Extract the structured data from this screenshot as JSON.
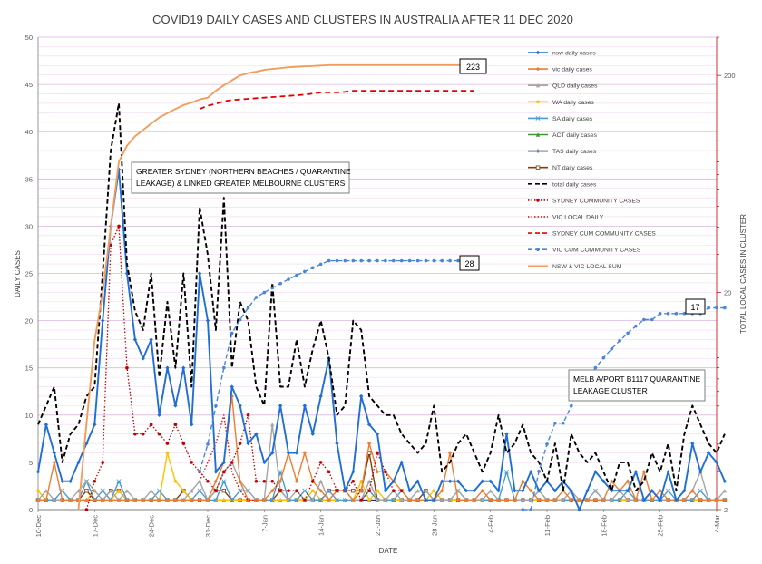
{
  "chart_data": {
    "type": "line",
    "title": "COVID19 DAILY CASES AND CLUSTERS IN AUSTRALIA AFTER 11 DEC 2020",
    "xlabel": "DATE",
    "ylabel": "DAILY CASES",
    "y2label": "TOTAL LOCAL CASES IN CLUSTER",
    "x_ticks": [
      "10-Dec",
      "17-Dec",
      "24-Dec",
      "31-Dec",
      "7-Jan",
      "14-Jan",
      "21-Jan",
      "28-Jan",
      "4-Feb",
      "11-Feb",
      "18-Feb",
      "25-Feb",
      "4-Mar"
    ],
    "x_range": [
      "2020-12-10",
      "2021-03-04"
    ],
    "y_ticks": [
      "0",
      "5",
      "10",
      "15",
      "20",
      "25",
      "30",
      "35",
      "40",
      "45",
      "50"
    ],
    "ylim": [
      0,
      50
    ],
    "y2_scale": "log",
    "y2_ticks": [
      "2",
      "20",
      "200"
    ],
    "y2lim": [
      2,
      300
    ],
    "grid": true,
    "legend_position": "right",
    "annotations": {
      "sydney_box": "GREATER  SYDNEY (NORTHERN BEACHES / QUARANTINE LEAKAGE) &  LINKED GREATER MELBOURNE CLUSTERS",
      "melb_box": "MELB A/PORT B1117 QUARANTINE LEAKAGE  CLUSTER",
      "end_label_nsw_vic": "223",
      "end_label_sydney": "28",
      "end_label_melb": "17"
    },
    "series": [
      {
        "key": "nsw",
        "name": "nsw daily cases",
        "color": "#1f6fd6",
        "axis": "left",
        "style": "solid",
        "marker": "diamond",
        "start": "2020-12-10",
        "values": [
          4,
          9,
          6,
          3,
          3,
          5,
          7,
          9,
          20,
          30,
          36,
          25,
          18,
          16,
          18,
          10,
          15,
          11,
          15,
          9,
          25,
          20,
          4,
          5,
          13,
          11,
          7,
          8,
          5,
          6,
          11,
          6,
          6,
          11,
          8,
          12,
          16,
          7,
          2,
          4,
          12,
          9,
          8,
          2,
          3,
          5,
          2,
          3,
          1,
          1,
          3,
          3,
          3,
          2,
          2,
          3,
          3,
          2,
          8,
          2,
          2,
          4,
          2,
          3,
          2,
          3,
          2,
          0,
          2,
          4,
          3,
          2,
          2,
          2,
          4,
          1,
          2,
          1,
          4,
          1,
          2,
          7,
          4,
          6,
          5,
          3
        ]
      },
      {
        "key": "vic",
        "name": "vic daily cases",
        "color": "#ed7d31",
        "axis": "left",
        "style": "solid",
        "marker": "diamond",
        "start": "2020-12-10",
        "values": [
          1,
          1,
          5,
          1,
          1,
          1,
          1,
          1,
          1,
          1,
          1,
          1,
          1,
          1,
          1,
          1,
          1,
          1,
          1,
          1,
          1,
          1,
          3,
          5,
          12,
          3,
          1,
          1,
          1,
          2,
          3,
          6,
          3,
          6,
          3,
          2,
          1,
          2,
          2,
          1,
          2,
          7,
          4,
          4,
          3,
          2,
          1,
          1,
          1,
          1,
          2,
          6,
          1,
          1,
          1,
          2,
          1,
          1,
          1,
          1,
          3,
          2,
          1,
          1,
          1,
          2,
          1,
          1,
          1,
          1,
          1,
          3,
          2,
          3,
          1,
          4,
          1,
          2,
          1,
          1,
          1,
          2,
          1,
          1,
          1,
          1
        ]
      },
      {
        "key": "qld",
        "name": "QLD daily cases",
        "color": "#a5a5a5",
        "axis": "left",
        "style": "solid",
        "marker": "triangle",
        "start": "2020-12-10",
        "values": [
          1,
          2,
          1,
          1,
          1,
          2,
          3,
          2,
          1,
          2,
          1,
          2,
          1,
          1,
          2,
          1,
          1,
          1,
          1,
          2,
          3,
          1,
          2,
          4,
          5,
          3,
          2,
          1,
          1,
          9,
          2,
          1,
          2,
          1,
          1,
          3,
          1,
          2,
          2,
          1,
          1,
          3,
          1,
          1,
          2,
          1,
          1,
          2,
          2,
          1,
          1,
          1,
          2,
          1,
          1,
          1,
          2,
          1,
          1,
          1,
          1,
          1,
          2,
          1,
          1,
          1,
          2,
          1,
          1,
          2,
          1,
          1,
          2,
          1,
          1,
          1,
          2,
          1,
          1,
          1,
          1,
          2,
          4,
          1,
          1,
          2
        ]
      },
      {
        "key": "wa",
        "name": "WA  daily cases",
        "color": "#ffc000",
        "axis": "left",
        "style": "solid",
        "marker": "circle",
        "start": "2020-12-10",
        "values": [
          2,
          1,
          1,
          1,
          1,
          1,
          1,
          2,
          1,
          1,
          2,
          1,
          1,
          1,
          1,
          1,
          6,
          3,
          2,
          1,
          1,
          1,
          1,
          1,
          1,
          1,
          1,
          1,
          1,
          1,
          1,
          1,
          1,
          1,
          2,
          1,
          1,
          1,
          1,
          1,
          3,
          1,
          2,
          1,
          1,
          1,
          1,
          1,
          1,
          2,
          1,
          1,
          1,
          1,
          1,
          1,
          1,
          1,
          1,
          1,
          1,
          1,
          1,
          1,
          1,
          1,
          1,
          1,
          1,
          1,
          1,
          1,
          1,
          1,
          1,
          1,
          1,
          1,
          1,
          1,
          1,
          1,
          1,
          1,
          1,
          1
        ]
      },
      {
        "key": "sa",
        "name": "SA  daily cases",
        "color": "#4a9bd1",
        "axis": "left",
        "style": "solid",
        "marker": "x",
        "start": "2020-12-10",
        "values": [
          1,
          1,
          1,
          2,
          1,
          1,
          3,
          1,
          2,
          1,
          3,
          1,
          1,
          1,
          1,
          2,
          1,
          1,
          1,
          1,
          2,
          1,
          1,
          3,
          1,
          2,
          2,
          1,
          1,
          1,
          4,
          1,
          1,
          2,
          1,
          1,
          2,
          1,
          1,
          1,
          1,
          2,
          1,
          1,
          1,
          2,
          1,
          1,
          1,
          1,
          1,
          1,
          2,
          1,
          1,
          1,
          1,
          1,
          4,
          1,
          1,
          1,
          2,
          1,
          1,
          1,
          1,
          1,
          1,
          2,
          1,
          1,
          1,
          2,
          1,
          1,
          1,
          1,
          2,
          1,
          1,
          1,
          2,
          1,
          1,
          1
        ]
      },
      {
        "key": "act",
        "name": "ACT daily cases",
        "color": "#3a9a2f",
        "axis": "left",
        "style": "solid",
        "marker": "triangle",
        "start": "2020-12-10",
        "values": [
          1,
          1,
          1,
          1,
          1,
          1,
          1,
          1,
          1,
          1,
          1,
          1,
          1,
          1,
          1,
          1,
          1,
          1,
          1,
          1,
          1,
          1,
          1,
          1,
          1,
          1,
          1,
          1,
          1,
          1,
          1,
          1,
          1,
          1,
          1,
          1,
          1,
          1,
          1,
          1,
          1,
          1,
          1,
          1,
          1,
          1,
          1,
          1,
          1,
          1,
          1,
          1,
          1,
          1,
          1,
          1,
          1,
          1,
          1,
          1,
          1,
          1,
          1,
          1,
          1,
          1,
          1,
          1,
          1,
          1,
          1,
          1,
          1,
          1,
          1,
          1,
          1,
          1,
          1,
          1,
          1,
          1,
          1,
          1,
          1,
          1
        ]
      },
      {
        "key": "tas",
        "name": "TAS daily cases",
        "color": "#1f3864",
        "axis": "left",
        "style": "solid",
        "marker": "plus",
        "start": "2020-12-10",
        "values": [
          1,
          1,
          1,
          1,
          1,
          1,
          1,
          1,
          1,
          1,
          1,
          1,
          1,
          1,
          1,
          1,
          1,
          1,
          1,
          1,
          1,
          1,
          1,
          1,
          1,
          1,
          1,
          1,
          1,
          1,
          1,
          1,
          1,
          1,
          1,
          1,
          1,
          1,
          1,
          1,
          1,
          1,
          1,
          1,
          1,
          1,
          1,
          1,
          1,
          1,
          1,
          1,
          1,
          1,
          1,
          1,
          1,
          1,
          1,
          1,
          1,
          1,
          1,
          1,
          1,
          1,
          1,
          1,
          1,
          1,
          1,
          1,
          1,
          1,
          1,
          1,
          1,
          1,
          1,
          1,
          1,
          1,
          1,
          1,
          1,
          1
        ]
      },
      {
        "key": "nt",
        "name": "NT daily cases",
        "color": "#843c0c",
        "axis": "left",
        "style": "solid",
        "marker": "square",
        "start": "2020-12-10",
        "values": [
          1,
          1,
          1,
          1,
          1,
          1,
          2,
          1,
          1,
          2,
          2,
          1,
          1,
          1,
          1,
          1,
          1,
          1,
          2,
          1,
          1,
          1,
          2,
          2,
          1,
          1,
          1,
          1,
          1,
          1,
          2,
          1,
          1,
          1,
          1,
          1,
          2,
          2,
          2,
          2,
          2,
          6,
          1,
          1,
          1,
          1,
          1,
          1,
          2,
          1,
          1,
          1,
          1,
          1,
          1,
          1,
          1,
          1,
          1,
          1,
          1,
          1,
          1,
          1,
          1,
          1,
          1,
          1,
          1,
          1,
          1,
          1,
          1,
          1,
          1,
          1,
          1,
          1,
          1,
          1,
          1,
          1,
          1,
          1,
          1,
          1
        ]
      },
      {
        "key": "total",
        "name": "total daily cases",
        "color": "#000000",
        "axis": "left",
        "style": "dashed",
        "marker": "none",
        "start": "2020-12-10",
        "values": [
          9,
          11,
          13,
          5,
          8,
          9,
          12,
          13,
          25,
          38,
          43,
          26,
          21,
          19,
          25,
          14,
          22,
          15,
          25,
          13,
          32,
          27,
          19,
          33,
          15,
          22,
          20,
          13,
          11,
          24,
          13,
          13,
          18,
          13,
          17,
          20,
          16,
          10,
          11,
          20,
          19,
          12,
          11,
          10,
          10,
          8,
          7,
          6,
          7,
          11,
          4,
          5,
          7,
          8,
          6,
          4,
          6,
          10,
          6,
          7,
          9,
          6,
          5,
          3,
          7,
          2,
          8,
          6,
          5,
          6,
          4,
          2,
          5,
          5,
          2,
          3,
          6,
          4,
          7,
          2,
          8,
          11,
          9,
          7,
          6,
          8
        ]
      },
      {
        "key": "syd_comm",
        "name": "SYDNEY COMMUNITY CASES",
        "color": "#c00000",
        "axis": "left",
        "style": "dotted",
        "marker": "circle",
        "start": "2020-12-16",
        "values": [
          0,
          3,
          5,
          28,
          30,
          15,
          8,
          8,
          9,
          8,
          7,
          9,
          7,
          5,
          4,
          3,
          2,
          4,
          5,
          7,
          10,
          3,
          3,
          3,
          2,
          2,
          2,
          1,
          3,
          5,
          4,
          2,
          2,
          3,
          1,
          2,
          6,
          4,
          2,
          2
        ]
      },
      {
        "key": "vic_local",
        "name": "VIC LOCAL DAILY",
        "color": "#e00000",
        "axis": "left",
        "style": "dotted",
        "marker": "none",
        "start": "2020-12-30",
        "values": [
          3,
          5,
          7,
          10,
          4,
          2,
          1,
          1
        ]
      },
      {
        "key": "syd_cum",
        "name": "SYDNEY CUM COMMUNITY CASES",
        "color": "#e00000",
        "axis": "right",
        "style": "dashed",
        "marker": "none",
        "start": "2020-12-30",
        "values": [
          140,
          145,
          148,
          152,
          154,
          155,
          156,
          157,
          158,
          159,
          160,
          161,
          162,
          163,
          165,
          167,
          167,
          167,
          168,
          170,
          170,
          170,
          170,
          170,
          170,
          170,
          170,
          170,
          170,
          170,
          170,
          170,
          170,
          170,
          170
        ]
      },
      {
        "key": "vic_cum",
        "name": "VIC CUM COMMUNITY CASES",
        "color": "#4a86d8",
        "axis": "right",
        "style": "dashed",
        "marker": "circle",
        "start": "2020-12-30",
        "values": [
          3,
          4,
          6,
          9,
          13,
          15,
          17,
          19,
          20,
          21,
          22,
          23,
          24,
          25,
          26,
          27,
          28,
          28,
          28,
          28,
          28,
          28,
          28,
          28,
          28,
          28,
          28,
          28,
          28,
          28,
          28,
          28,
          28,
          28,
          28
        ]
      },
      {
        "key": "melb_cum",
        "name": "VIC CUM COMMUNITY CASES",
        "color": "#4a86d8",
        "axis": "right",
        "style": "dashed",
        "marker": "circle",
        "start": "2021-02-08",
        "values": [
          2,
          2,
          3,
          4,
          5,
          5,
          6,
          7,
          8,
          9,
          10,
          11,
          12,
          13,
          14,
          15,
          15,
          16,
          16,
          16,
          16,
          16,
          16,
          17,
          17,
          17
        ]
      },
      {
        "key": "nsw_vic_sum",
        "name": "NSW & VIC LOCAL SUM",
        "color": "#f29d5b",
        "axis": "right",
        "style": "solid",
        "marker": "none",
        "start": "2020-12-15",
        "values": [
          2,
          5,
          12,
          20,
          40,
          80,
          95,
          105,
          112,
          120,
          128,
          134,
          140,
          146,
          150,
          155,
          158,
          170,
          180,
          190,
          200,
          205,
          208,
          212,
          214,
          216,
          218,
          219,
          220,
          221,
          222,
          223,
          223,
          223,
          223,
          223,
          223,
          223,
          223,
          223,
          223,
          223,
          223,
          223,
          223,
          223,
          223,
          223,
          223,
          223,
          223
        ]
      }
    ]
  }
}
